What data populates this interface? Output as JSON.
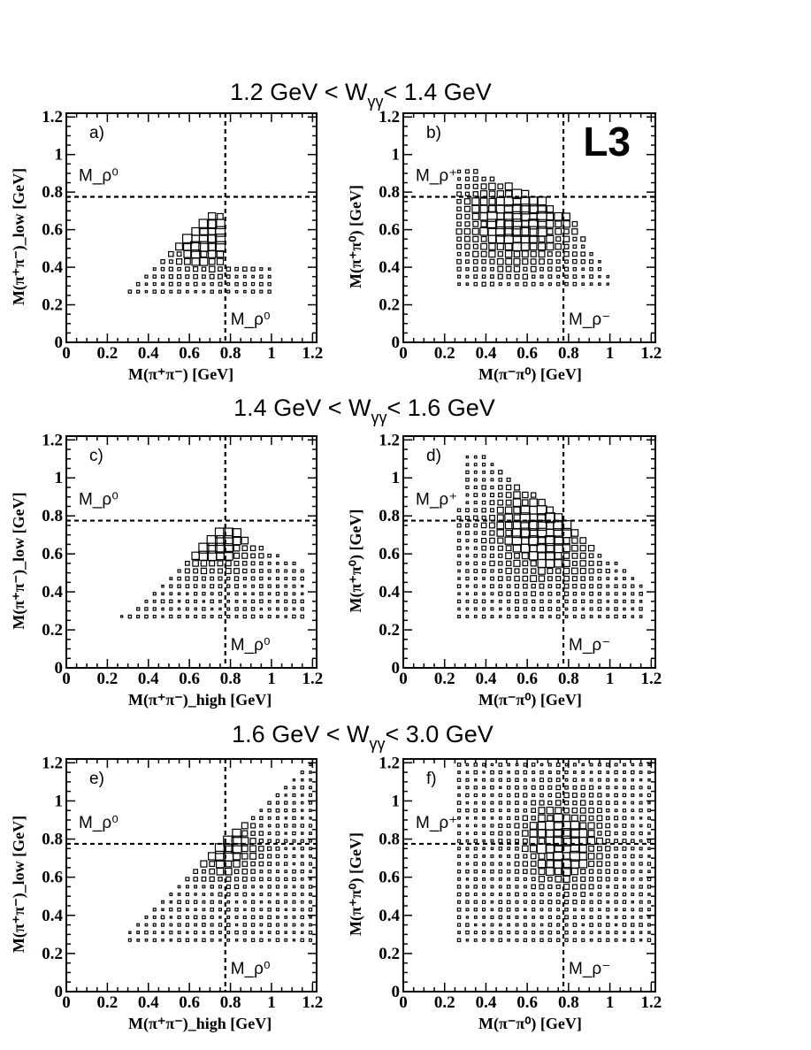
{
  "figure": {
    "logo": "L3",
    "row_titles": [
      "1.2 GeV < W_{γγ}< 1.4 GeV",
      "1.4 GeV < W_{γγ}< 1.6 GeV",
      "1.6 GeV < W_{γγ}< 3.0 GeV"
    ],
    "tick_labels": [
      "0",
      "0.2",
      "0.4",
      "0.6",
      "0.8",
      "1",
      "1.2"
    ],
    "reference_mass": 0.775
  },
  "chart_data": [
    {
      "type": "heatmap",
      "panel": "a)",
      "xlabel": "M(π⁺π⁻)       [GeV]",
      "ylabel": "M(π⁺π⁻)_low  [GeV]",
      "xlim": [
        0,
        1.22
      ],
      "ylim": [
        0,
        1.22
      ],
      "hline_label": "M_ρ⁰",
      "vline_label": "M_ρ⁰",
      "density": "band near M(π⁺π⁻) 0.3–1.0 GeV, M_low 0.27–0.68 GeV, peak near (0.7, 0.55)",
      "region": {
        "x": [
          0.31,
          1.02
        ],
        "y": [
          0.27,
          0.68
        ],
        "peak": [
          0.7,
          0.55
        ],
        "spread": [
          0.13,
          0.11
        ],
        "cut": "tri_a"
      }
    },
    {
      "type": "heatmap",
      "panel": "b)",
      "xlabel": "M(π⁻π⁰) [GeV]",
      "ylabel": "M(π⁺π⁰) [GeV]",
      "xlim": [
        0,
        1.22
      ],
      "ylim": [
        0,
        1.22
      ],
      "hline_label": "M_ρ⁺",
      "vline_label": "M_ρ⁻",
      "density": "cluster near M(π⁻π⁰) 0.3–1.0 GeV, M(π⁺π⁰) 0.3–0.93 GeV, peaks near (0.52, 0.7) and (0.68, 0.56)",
      "region": {
        "x": [
          0.27,
          1.02
        ],
        "y": [
          0.31,
          0.93
        ],
        "peak": [
          0.55,
          0.65
        ],
        "spread": [
          0.18,
          0.16
        ],
        "cut": "tri_b"
      }
    },
    {
      "type": "heatmap",
      "panel": "c)",
      "xlabel": "M(π⁺π⁻)_high [GeV]",
      "ylabel": "M(π⁺π⁻)_low  [GeV]",
      "xlim": [
        0,
        1.22
      ],
      "ylim": [
        0,
        1.22
      ],
      "hline_label": "M_ρ⁰",
      "vline_label": "M_ρ⁰",
      "density": "triangle above diagonal, M_high 0.27–1.18 GeV, M_low 0.27–0.75 GeV, peak near (0.75, 0.68)",
      "region": {
        "x": [
          0.27,
          1.18
        ],
        "y": [
          0.27,
          0.75
        ],
        "peak": [
          0.74,
          0.66
        ],
        "spread": [
          0.12,
          0.1
        ],
        "cut": "tri_c"
      }
    },
    {
      "type": "heatmap",
      "panel": "d)",
      "xlabel": "M(π⁻π⁰) [GeV]",
      "ylabel": "M(π⁺π⁰) [GeV]",
      "xlim": [
        0,
        1.22
      ],
      "ylim": [
        0,
        1.22
      ],
      "hline_label": "M_ρ⁺",
      "vline_label": "M_ρ⁻",
      "density": "region M(π⁻π⁰) 0.27–1.15 GeV, M(π⁺π⁰) 0.27–1.13 GeV, peak near (0.7, 0.72)",
      "region": {
        "x": [
          0.27,
          1.15
        ],
        "y": [
          0.27,
          1.13
        ],
        "peak": [
          0.68,
          0.72
        ],
        "spread": [
          0.16,
          0.17
        ],
        "cut": "tri_d"
      }
    },
    {
      "type": "heatmap",
      "panel": "e)",
      "xlabel": "M(π⁺π⁻)_high [GeV]",
      "ylabel": "M(π⁺π⁻)_low  [GeV]",
      "xlim": [
        0,
        1.22
      ],
      "ylim": [
        0,
        1.22
      ],
      "hline_label": "M_ρ⁰",
      "vline_label": "M_ρ⁰",
      "density": "triangle M_low ≤ M_high, M_high 0.3–1.22 GeV, M_low 0.27–1.22 GeV, peak near (0.77, 0.77)",
      "region": {
        "x": [
          0.31,
          1.22
        ],
        "y": [
          0.27,
          1.22
        ],
        "peak": [
          0.77,
          0.76
        ],
        "spread": [
          0.1,
          0.1
        ],
        "cut": "tri_e"
      }
    },
    {
      "type": "heatmap",
      "panel": "f)",
      "xlabel": "M(π⁻π⁰) [GeV]",
      "ylabel": "M(π⁺π⁰) [GeV]",
      "xlim": [
        0,
        1.22
      ],
      "ylim": [
        0,
        1.22
      ],
      "hline_label": "M_ρ⁺",
      "vline_label": "M_ρ⁻",
      "density": "broad fill M(π⁻π⁰) 0.27–1.22 GeV, M(π⁺π⁰) 0.27–1.22 GeV, peak near (0.77, 0.77)",
      "region": {
        "x": [
          0.27,
          1.22
        ],
        "y": [
          0.27,
          1.22
        ],
        "peak": [
          0.77,
          0.78
        ],
        "spread": [
          0.12,
          0.14
        ],
        "cut": "none"
      }
    }
  ]
}
